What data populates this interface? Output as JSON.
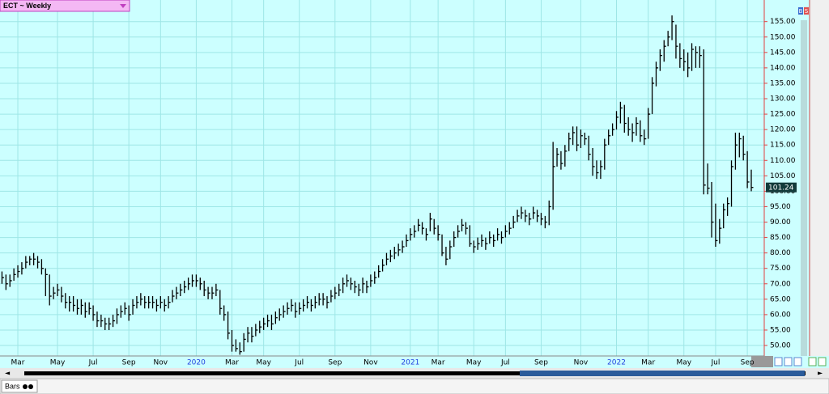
{
  "chart_data": {
    "type": "ohlc",
    "title": "ECT ~ Weekly",
    "color": "#000000",
    "grid": true,
    "categories": [
      null,
      null,
      null,
      null,
      "Mar",
      null,
      null,
      null,
      null,
      null,
      null,
      null,
      null,
      null,
      "May",
      null,
      null,
      null,
      null,
      null,
      null,
      null,
      null,
      "Jul",
      null,
      null,
      null,
      null,
      null,
      null,
      null,
      null,
      "Sep",
      null,
      null,
      null,
      null,
      null,
      null,
      null,
      "Nov",
      null,
      null,
      null,
      null,
      null,
      null,
      null,
      null,
      "2020",
      null,
      null,
      null,
      null,
      null,
      null,
      null,
      null,
      "Mar",
      null,
      null,
      null,
      null,
      null,
      null,
      null,
      "May",
      null,
      null,
      null,
      null,
      null,
      null,
      null,
      null,
      "Jul",
      null,
      null,
      null,
      null,
      null,
      null,
      null,
      null,
      "Sep",
      null,
      null,
      null,
      null,
      null,
      null,
      null,
      null,
      "Nov",
      null,
      null,
      null,
      null,
      null,
      null,
      null,
      null,
      null,
      "2021",
      null,
      null,
      null,
      null,
      null,
      null,
      "Mar",
      null,
      null,
      null,
      null,
      null,
      null,
      null,
      null,
      "May",
      null,
      null,
      null,
      null,
      null,
      null,
      null,
      "Jul",
      null,
      null,
      null,
      null,
      null,
      null,
      null,
      null,
      "Sep",
      null,
      null,
      null,
      null,
      null,
      null,
      null,
      null,
      null,
      "Nov",
      null,
      null,
      null,
      null,
      null,
      null,
      null,
      null,
      "2022",
      null,
      null,
      null,
      null,
      null,
      null,
      null,
      "Mar",
      null,
      null,
      null,
      null,
      null,
      null,
      null,
      null,
      "May",
      null,
      null,
      null,
      null,
      null,
      null,
      null,
      "Jul",
      null,
      null,
      null,
      null,
      null,
      null,
      null,
      "Sep",
      null
    ],
    "high": [
      74,
      73,
      73,
      75,
      76,
      77,
      79,
      79,
      80,
      79,
      78,
      75,
      73,
      69,
      70,
      69,
      67,
      66,
      66,
      65,
      65,
      64,
      64,
      63,
      61,
      60,
      59,
      59,
      60,
      62,
      63,
      64,
      63,
      65,
      66,
      67,
      66,
      66,
      66,
      65,
      66,
      65,
      66,
      68,
      69,
      70,
      71,
      72,
      73,
      73,
      72,
      71,
      69,
      69,
      70,
      68,
      63,
      61,
      55,
      52,
      51,
      54,
      56,
      56,
      57,
      58,
      59,
      60,
      60,
      61,
      62,
      63,
      64,
      65,
      64,
      64,
      65,
      66,
      65,
      66,
      67,
      67,
      66,
      68,
      69,
      70,
      72,
      73,
      72,
      71,
      70,
      72,
      71,
      73,
      74,
      76,
      78,
      80,
      81,
      82,
      83,
      84,
      86,
      88,
      89,
      91,
      90,
      88,
      93,
      91,
      89,
      86,
      82,
      84,
      87,
      89,
      91,
      90,
      89,
      84,
      85,
      86,
      85,
      87,
      86,
      88,
      87,
      89,
      90,
      92,
      94,
      95,
      94,
      93,
      95,
      94,
      93,
      92,
      97,
      116,
      114,
      113,
      115,
      119,
      121,
      121,
      120,
      119,
      118,
      114,
      110,
      110,
      117,
      120,
      122,
      126,
      129,
      128,
      124,
      122,
      124,
      123,
      120,
      127,
      137,
      142,
      146,
      149,
      152,
      157,
      154,
      148,
      146,
      145,
      148,
      147,
      147,
      146,
      109,
      103,
      96,
      91,
      96,
      98,
      110,
      119,
      119,
      118,
      113,
      107
    ],
    "low": [
      70,
      68,
      69,
      71,
      72,
      73,
      75,
      76,
      76,
      75,
      73,
      66,
      63,
      65,
      66,
      64,
      62,
      61,
      61,
      60,
      60,
      59,
      60,
      58,
      56,
      56,
      55,
      55,
      56,
      57,
      59,
      60,
      58,
      60,
      62,
      63,
      62,
      62,
      62,
      61,
      62,
      61,
      62,
      64,
      65,
      66,
      67,
      68,
      69,
      69,
      68,
      66,
      65,
      65,
      66,
      60,
      58,
      52,
      48,
      48,
      47,
      48,
      51,
      51,
      53,
      54,
      55,
      56,
      55,
      57,
      58,
      59,
      60,
      61,
      59,
      60,
      61,
      62,
      61,
      62,
      63,
      63,
      62,
      64,
      65,
      66,
      67,
      69,
      68,
      67,
      66,
      67,
      67,
      69,
      70,
      72,
      74,
      76,
      77,
      78,
      79,
      80,
      82,
      84,
      85,
      87,
      86,
      84,
      87,
      86,
      84,
      79,
      76,
      78,
      82,
      85,
      87,
      86,
      82,
      80,
      81,
      82,
      81,
      83,
      82,
      84,
      83,
      85,
      86,
      88,
      90,
      91,
      90,
      89,
      91,
      90,
      89,
      88,
      89,
      94,
      108,
      107,
      108,
      113,
      115,
      113,
      114,
      115,
      110,
      105,
      104,
      104,
      107,
      115,
      118,
      120,
      122,
      119,
      118,
      116,
      118,
      116,
      115,
      117,
      125,
      134,
      139,
      142,
      147,
      149,
      143,
      140,
      139,
      137,
      139,
      140,
      140,
      99,
      99,
      85,
      82,
      83,
      88,
      92,
      95,
      107,
      111,
      110,
      101,
      100
    ],
    "close": [
      72,
      70,
      71,
      73,
      74,
      75,
      77,
      78,
      78,
      77,
      75,
      73,
      66,
      67,
      68,
      66,
      64,
      64,
      63,
      62,
      63,
      61,
      62,
      60,
      58,
      58,
      57,
      57,
      58,
      60,
      61,
      62,
      60,
      63,
      64,
      65,
      64,
      64,
      64,
      63,
      64,
      63,
      64,
      66,
      67,
      68,
      69,
      70,
      71,
      71,
      70,
      68,
      67,
      67,
      68,
      62,
      60,
      54,
      50,
      49,
      48,
      52,
      54,
      53,
      55,
      56,
      57,
      58,
      57,
      59,
      60,
      61,
      62,
      63,
      61,
      62,
      63,
      64,
      63,
      64,
      65,
      65,
      64,
      66,
      67,
      68,
      70,
      71,
      70,
      69,
      68,
      70,
      69,
      71,
      72,
      74,
      76,
      78,
      79,
      80,
      81,
      82,
      84,
      86,
      87,
      89,
      88,
      86,
      91,
      88,
      86,
      80,
      78,
      82,
      85,
      87,
      89,
      88,
      83,
      82,
      83,
      84,
      83,
      85,
      84,
      86,
      85,
      87,
      88,
      90,
      92,
      93,
      92,
      91,
      93,
      92,
      91,
      90,
      95,
      108,
      112,
      109,
      113,
      117,
      119,
      115,
      118,
      117,
      112,
      108,
      106,
      108,
      115,
      118,
      120,
      124,
      127,
      122,
      120,
      119,
      122,
      118,
      117,
      125,
      135,
      140,
      144,
      147,
      150,
      155,
      147,
      143,
      142,
      140,
      146,
      145,
      144,
      102,
      101,
      90,
      84,
      88,
      94,
      96,
      108,
      115,
      117,
      112,
      103,
      101.24
    ],
    "ylim": [
      46.6,
      162
    ],
    "yticks": [
      {
        "value": 50,
        "label": "50.00"
      },
      {
        "value": 55,
        "label": "55.00"
      },
      {
        "value": 60,
        "label": "60.00"
      },
      {
        "value": 65,
        "label": "65.00"
      },
      {
        "value": 70,
        "label": "70.00"
      },
      {
        "value": 75,
        "label": "75.00"
      },
      {
        "value": 80,
        "label": "80.00"
      },
      {
        "value": 85,
        "label": "85.00"
      },
      {
        "value": 90,
        "label": "90.00"
      },
      {
        "value": 95,
        "label": "95.00"
      },
      {
        "value": 100,
        "label": "100.00"
      },
      {
        "value": 105,
        "label": "105.00"
      },
      {
        "value": 110,
        "label": "110.00"
      },
      {
        "value": 115,
        "label": "115.00"
      },
      {
        "value": 120,
        "label": "120.00"
      },
      {
        "value": 125,
        "label": "125.00"
      },
      {
        "value": 130,
        "label": "130.00"
      },
      {
        "value": 135,
        "label": "135.00"
      },
      {
        "value": 140,
        "label": "140.00"
      },
      {
        "value": 145,
        "label": "145.00"
      },
      {
        "value": 150,
        "label": "150.00"
      },
      {
        "value": 155,
        "label": "155.00"
      }
    ]
  },
  "ui": {
    "status": "Bars",
    "corner_buttons": [
      "B",
      "S"
    ]
  }
}
